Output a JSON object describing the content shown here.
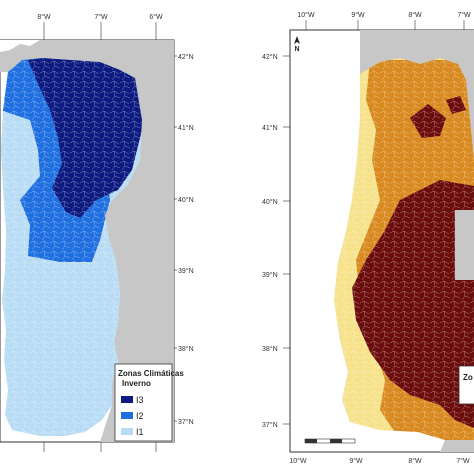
{
  "left_map": {
    "legend": {
      "title_line1": "Zonas Climáticas",
      "title_line2": "Inverno",
      "items": [
        {
          "label": "I3",
          "color": "#0d1a80"
        },
        {
          "label": "I2",
          "color": "#1f6fe0"
        },
        {
          "label": "I1",
          "color": "#b9dcf5"
        }
      ]
    },
    "lon_labels": [
      "8°W",
      "7°W",
      "6°W"
    ],
    "lat_labels": [
      "42°N",
      "41°N",
      "40°N",
      "39°N",
      "38°N",
      "37°N"
    ]
  },
  "right_map": {
    "legend_title_fragment": "Zo",
    "north_label": "N",
    "lon_labels_top": [
      "10°W",
      "9°W",
      "8°W",
      "7°W"
    ],
    "lon_labels_bottom": [
      "10°W",
      "9°W",
      "8°W",
      "7°W"
    ],
    "lat_labels": [
      "42°N",
      "41°N",
      "40°N",
      "39°N",
      "38°N",
      "37°N"
    ],
    "colors": {
      "zone_low": "#f6e28a",
      "zone_mid": "#d8891f",
      "zone_high": "#6b0d0d"
    }
  },
  "colors": {
    "spain_gray": "#c7c7c7",
    "ocean": "#ffffff",
    "frame": "#333333"
  }
}
